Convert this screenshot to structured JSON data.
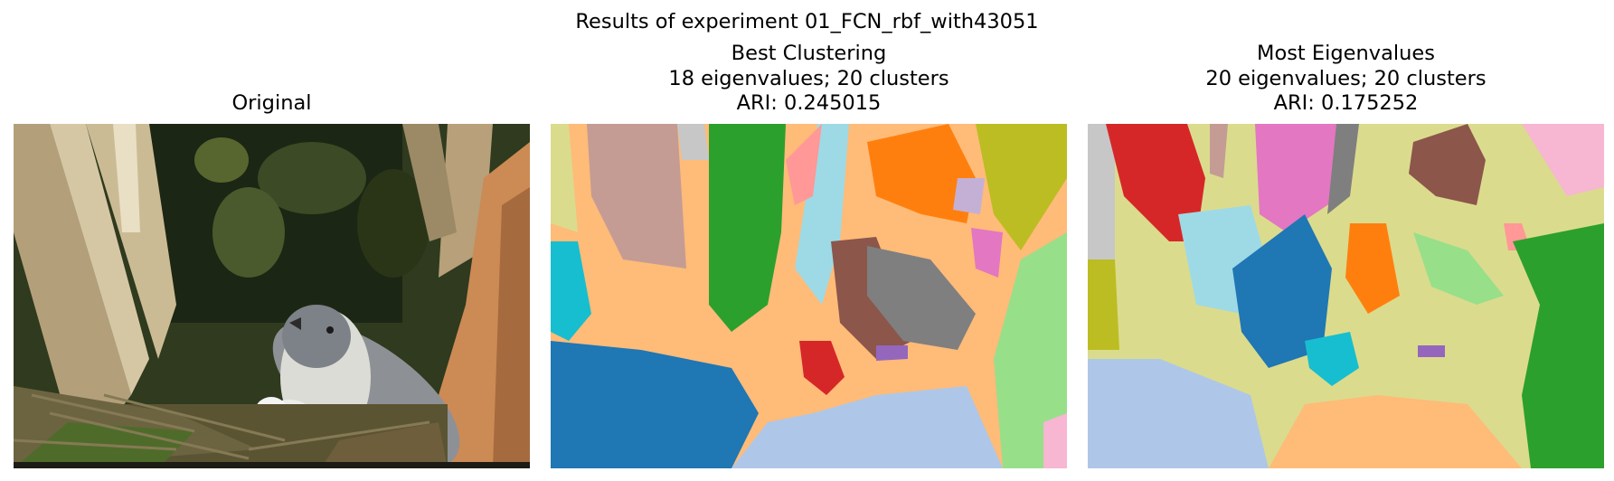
{
  "figure": {
    "suptitle": "Results of experiment 01_FCN_rbf_with43051",
    "panels": [
      {
        "title_lines": [
          "Original"
        ]
      },
      {
        "title_lines": [
          "Best Clustering",
          "18 eigenvalues; 20 clusters",
          "ARI: 0.245015"
        ]
      },
      {
        "title_lines": [
          "Most Eigenvalues",
          "20 eigenvalues; 20 clusters",
          "ARI: 0.175252"
        ]
      }
    ]
  },
  "palette": {
    "blue": "#1f77b4",
    "light_blue": "#aec7e8",
    "orange": "#ff7f0e",
    "light_orange": "#ffbb78",
    "green": "#2ca02c",
    "light_green": "#98df8a",
    "red": "#d62728",
    "pink": "#ff9896",
    "purple": "#9467bd",
    "lavender": "#c5b0d5",
    "brown": "#8c564b",
    "tan": "#c49c94",
    "magenta": "#e377c2",
    "light_pink": "#f7b6d2",
    "gray": "#7f7f7f",
    "light_gray": "#c7c7c7",
    "olive": "#bcbd22",
    "khaki": "#dbdb8d",
    "cyan": "#17becf",
    "light_cyan": "#9edae5"
  }
}
